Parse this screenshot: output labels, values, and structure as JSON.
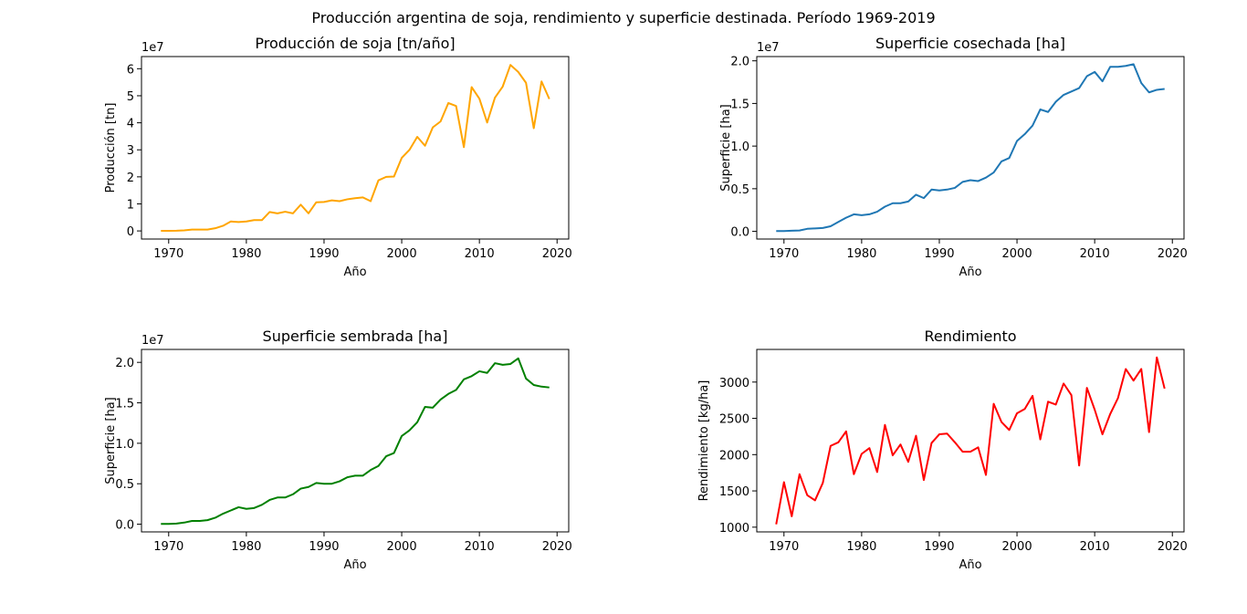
{
  "suptitle": "Producción argentina de soja, rendimiento y superficie destinada. Período 1969-2019",
  "chart_data": [
    {
      "type": "line",
      "title": "Producción de soja [tn/año]",
      "xlabel": "Año",
      "ylabel": "Producción [tn]",
      "offset_text": "1e7",
      "color": "#ffa500",
      "xlim": [
        1966.5,
        2021.5
      ],
      "ylim": [
        -3000000,
        64500000
      ],
      "xticks": [
        1970,
        1980,
        1990,
        2000,
        2010,
        2020
      ],
      "xtick_labels": [
        "1970",
        "1980",
        "1990",
        "2000",
        "2010",
        "2020"
      ],
      "yticks": [
        0,
        10000000,
        20000000,
        30000000,
        40000000,
        50000000,
        60000000
      ],
      "ytick_labels": [
        "0",
        "1",
        "2",
        "3",
        "4",
        "5",
        "6"
      ],
      "grid": false,
      "x": [
        1969,
        1970,
        1971,
        1972,
        1973,
        1974,
        1975,
        1976,
        1977,
        1978,
        1979,
        1980,
        1981,
        1982,
        1983,
        1984,
        1985,
        1986,
        1987,
        1988,
        1989,
        1990,
        1991,
        1992,
        1993,
        1994,
        1995,
        1996,
        1997,
        1998,
        1999,
        2000,
        2001,
        2002,
        2003,
        2004,
        2005,
        2006,
        2007,
        2008,
        2009,
        2010,
        2011,
        2012,
        2013,
        2014,
        2015,
        2016,
        2017,
        2018,
        2019
      ],
      "values": [
        30000,
        30000,
        80000,
        200000,
        500000,
        500000,
        500000,
        1000000,
        1900000,
        3500000,
        3300000,
        3500000,
        4000000,
        4000000,
        7000000,
        6500000,
        7100000,
        6500000,
        9700000,
        6500000,
        10600000,
        10700000,
        11300000,
        11000000,
        11700000,
        12100000,
        12400000,
        11000000,
        18700000,
        20000000,
        20100000,
        27000000,
        30000000,
        34800000,
        31500000,
        38300000,
        40500000,
        47300000,
        46200000,
        31000000,
        53200000,
        48900000,
        40100000,
        49300000,
        53400000,
        61400000,
        58800000,
        54800000,
        38000000,
        55300000,
        48800000
      ]
    },
    {
      "type": "line",
      "title": "Superficie cosechada [ha]",
      "xlabel": "Año",
      "ylabel": "Superficie [ha]",
      "offset_text": "1e7",
      "color": "#1f77b4",
      "xlim": [
        1966.5,
        2021.5
      ],
      "ylim": [
        -900000,
        20500000
      ],
      "xticks": [
        1970,
        1980,
        1990,
        2000,
        2010,
        2020
      ],
      "xtick_labels": [
        "1970",
        "1980",
        "1990",
        "2000",
        "2010",
        "2020"
      ],
      "yticks": [
        0,
        5000000,
        10000000,
        15000000,
        20000000
      ],
      "ytick_labels": [
        "0.0",
        "0.5",
        "1.0",
        "1.5",
        "2.0"
      ],
      "grid": false,
      "x": [
        1969,
        1970,
        1971,
        1972,
        1973,
        1974,
        1975,
        1976,
        1977,
        1978,
        1979,
        1980,
        1981,
        1982,
        1983,
        1984,
        1985,
        1986,
        1987,
        1988,
        1989,
        1990,
        1991,
        1992,
        1993,
        1994,
        1995,
        1996,
        1997,
        1998,
        1999,
        2000,
        2001,
        2002,
        2003,
        2004,
        2005,
        2006,
        2007,
        2008,
        2009,
        2010,
        2011,
        2012,
        2013,
        2014,
        2015,
        2016,
        2017,
        2018,
        2019
      ],
      "values": [
        30000,
        30000,
        70000,
        100000,
        300000,
        350000,
        400000,
        600000,
        1100000,
        1600000,
        2000000,
        1900000,
        2000000,
        2300000,
        2900000,
        3300000,
        3300000,
        3500000,
        4300000,
        3900000,
        4900000,
        4800000,
        4900000,
        5100000,
        5800000,
        6000000,
        5900000,
        6300000,
        6900000,
        8200000,
        8600000,
        10600000,
        11400000,
        12400000,
        14300000,
        14000000,
        15200000,
        16000000,
        16400000,
        16800000,
        18200000,
        18700000,
        17600000,
        19300000,
        19300000,
        19400000,
        19600000,
        17400000,
        16300000,
        16600000,
        16700000
      ]
    },
    {
      "type": "line",
      "title": "Superficie sembrada [ha]",
      "xlabel": "Año",
      "ylabel": "Superficie [ha]",
      "offset_text": "1e7",
      "color": "#008000",
      "xlim": [
        1966.5,
        2021.5
      ],
      "ylim": [
        -950000,
        21600000
      ],
      "xticks": [
        1970,
        1980,
        1990,
        2000,
        2010,
        2020
      ],
      "xtick_labels": [
        "1970",
        "1980",
        "1990",
        "2000",
        "2010",
        "2020"
      ],
      "yticks": [
        0,
        5000000,
        10000000,
        15000000,
        20000000
      ],
      "ytick_labels": [
        "0.0",
        "0.5",
        "1.0",
        "1.5",
        "2.0"
      ],
      "grid": false,
      "x": [
        1969,
        1970,
        1971,
        1972,
        1973,
        1974,
        1975,
        1976,
        1977,
        1978,
        1979,
        1980,
        1981,
        1982,
        1983,
        1984,
        1985,
        1986,
        1987,
        1988,
        1989,
        1990,
        1991,
        1992,
        1993,
        1994,
        1995,
        1996,
        1997,
        1998,
        1999,
        2000,
        2001,
        2002,
        2003,
        2004,
        2005,
        2006,
        2007,
        2008,
        2009,
        2010,
        2011,
        2012,
        2013,
        2014,
        2015,
        2016,
        2017,
        2018,
        2019
      ],
      "values": [
        30000,
        40000,
        80000,
        200000,
        400000,
        400000,
        500000,
        800000,
        1300000,
        1700000,
        2100000,
        1900000,
        2000000,
        2400000,
        3000000,
        3300000,
        3300000,
        3700000,
        4400000,
        4600000,
        5100000,
        5000000,
        5000000,
        5300000,
        5800000,
        6000000,
        6000000,
        6700000,
        7200000,
        8400000,
        8800000,
        10900000,
        11600000,
        12600000,
        14500000,
        14400000,
        15400000,
        16100000,
        16600000,
        17900000,
        18300000,
        18900000,
        18700000,
        19900000,
        19700000,
        19800000,
        20500000,
        18000000,
        17200000,
        17000000,
        16900000
      ]
    },
    {
      "type": "line",
      "title": "Rendimiento",
      "xlabel": "Año",
      "ylabel": "Rendimiento [kg/ha]",
      "offset_text": "",
      "color": "#ff0000",
      "xlim": [
        1966.5,
        2021.5
      ],
      "ylim": [
        935,
        3450
      ],
      "xticks": [
        1970,
        1980,
        1990,
        2000,
        2010,
        2020
      ],
      "xtick_labels": [
        "1970",
        "1980",
        "1990",
        "2000",
        "2010",
        "2020"
      ],
      "yticks": [
        1000,
        1500,
        2000,
        2500,
        3000
      ],
      "ytick_labels": [
        "1000",
        "1500",
        "2000",
        "2500",
        "3000"
      ],
      "grid": false,
      "x": [
        1969,
        1970,
        1971,
        1972,
        1973,
        1974,
        1975,
        1976,
        1977,
        1978,
        1979,
        1980,
        1981,
        1982,
        1983,
        1984,
        1985,
        1986,
        1987,
        1988,
        1989,
        1990,
        1991,
        1992,
        1993,
        1994,
        1995,
        1996,
        1997,
        1998,
        1999,
        2000,
        2001,
        2002,
        2003,
        2004,
        2005,
        2006,
        2007,
        2008,
        2009,
        2010,
        2011,
        2012,
        2013,
        2014,
        2015,
        2016,
        2017,
        2018,
        2019
      ],
      "values": [
        1040,
        1620,
        1150,
        1730,
        1440,
        1370,
        1610,
        2120,
        2170,
        2320,
        1730,
        2010,
        2090,
        1760,
        2410,
        1990,
        2140,
        1900,
        2260,
        1650,
        2160,
        2280,
        2290,
        2170,
        2040,
        2040,
        2100,
        1720,
        2700,
        2450,
        2340,
        2570,
        2630,
        2810,
        2210,
        2730,
        2690,
        2980,
        2820,
        1850,
        2920,
        2620,
        2280,
        2560,
        2780,
        3180,
        3020,
        3180,
        2310,
        3340,
        2910
      ]
    }
  ]
}
